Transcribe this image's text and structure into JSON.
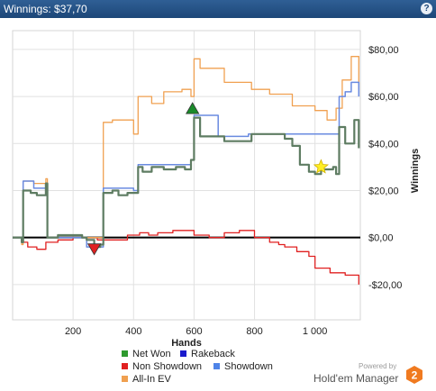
{
  "window": {
    "title": "Winnings: $37,70",
    "help_icon": "question-icon"
  },
  "brand": {
    "powered_by": "Powered by",
    "name": "Hold'em Manager",
    "logo_text": "2"
  },
  "chart_data": {
    "type": "line",
    "xlabel": "Hands",
    "ylabel": "Winnings",
    "xlim": [
      0,
      1150
    ],
    "ylim": [
      -35,
      88
    ],
    "xticks": [
      200,
      400,
      600,
      800,
      1000
    ],
    "xtick_labels": [
      "200",
      "400",
      "600",
      "800",
      "1 000"
    ],
    "yticks": [
      80,
      60,
      40,
      20,
      0,
      -20
    ],
    "ytick_labels": [
      "$80,00",
      "$60,00",
      "$40,00",
      "$20,00",
      "$0,00",
      "-$20,00"
    ],
    "grid": true,
    "legend_position": "bottom",
    "legend": [
      {
        "name": "Net Won",
        "color": "#2e9a2e"
      },
      {
        "name": "Rakeback",
        "color": "#1a1acc"
      },
      {
        "name": "Non Showdown",
        "color": "#e02020"
      },
      {
        "name": "Showdown",
        "color": "#4f84e8"
      },
      {
        "name": "All-In EV",
        "color": "#f0a050"
      }
    ],
    "series": [
      {
        "name": "Net Won",
        "color": "#5e7c62",
        "width": 2.2,
        "x": [
          0,
          30,
          35,
          60,
          80,
          110,
          115,
          150,
          200,
          230,
          245,
          270,
          280,
          290,
          300,
          330,
          350,
          380,
          400,
          415,
          430,
          460,
          500,
          540,
          570,
          590,
          600,
          620,
          700,
          790,
          900,
          925,
          950,
          980,
          1000,
          1020,
          1060,
          1070,
          1080,
          1100,
          1130,
          1145
        ],
        "y": [
          0,
          -2,
          20,
          19,
          18,
          23,
          0,
          1,
          1,
          0,
          -1,
          -4,
          -4,
          -3,
          19,
          20,
          18,
          19,
          19,
          30,
          28,
          30,
          29,
          30,
          29,
          33,
          51,
          43,
          41,
          44,
          42,
          39,
          31,
          28,
          27,
          29,
          30,
          27,
          47,
          40,
          50,
          38
        ]
      },
      {
        "name": "Showdown",
        "color": "#6a8be0",
        "width": 1.5,
        "x": [
          0,
          30,
          35,
          70,
          110,
          115,
          150,
          240,
          245,
          280,
          290,
          300,
          330,
          400,
          415,
          470,
          590,
          600,
          680,
          780,
          880,
          980,
          1000,
          1030,
          1070,
          1080,
          1100,
          1120,
          1145
        ],
        "y": [
          0,
          -2,
          24,
          21,
          23,
          0,
          0,
          0,
          -4,
          -4,
          -4,
          21,
          21,
          20,
          31,
          31,
          33,
          52,
          43,
          44,
          44,
          44,
          44,
          44,
          44,
          60,
          62,
          66,
          60
        ]
      },
      {
        "name": "Non Showdown",
        "color": "#e02020",
        "width": 1.3,
        "x": [
          0,
          30,
          50,
          80,
          110,
          150,
          200,
          240,
          280,
          330,
          380,
          420,
          450,
          480,
          530,
          600,
          650,
          700,
          750,
          800,
          850,
          880,
          900,
          940,
          980,
          1000,
          1050,
          1100,
          1145
        ],
        "y": [
          0,
          -2,
          -4,
          -5,
          -2,
          -1,
          0,
          0,
          -1,
          -1,
          1,
          2,
          1,
          2,
          3,
          1,
          0,
          2,
          3,
          0,
          -2,
          -3,
          -4,
          -6,
          -8,
          -13,
          -15,
          -16,
          -20
        ]
      },
      {
        "name": "All-In EV",
        "color": "#f0a050",
        "width": 1.3,
        "x": [
          0,
          30,
          35,
          70,
          110,
          115,
          150,
          180,
          245,
          280,
          300,
          330,
          380,
          400,
          415,
          460,
          500,
          560,
          590,
          600,
          620,
          700,
          790,
          850,
          925,
          1000,
          1040,
          1070,
          1090,
          1120,
          1145
        ],
        "y": [
          0,
          -3,
          24,
          23,
          25,
          0,
          0,
          0,
          0,
          0,
          49,
          50,
          50,
          44,
          60,
          57,
          62,
          63,
          60,
          76,
          72,
          66,
          63,
          61,
          56,
          54,
          50,
          55,
          67,
          77,
          63
        ]
      }
    ],
    "markers": [
      {
        "label": "min",
        "shape": "triangle-down",
        "x": 270,
        "y": -5,
        "color": "#e02020"
      },
      {
        "label": "max",
        "shape": "triangle-up",
        "x": 595,
        "y": 55,
        "color": "#1a8a2a"
      },
      {
        "label": "star",
        "shape": "star",
        "x": 1020,
        "y": 30,
        "color": "#ffee22"
      }
    ]
  }
}
